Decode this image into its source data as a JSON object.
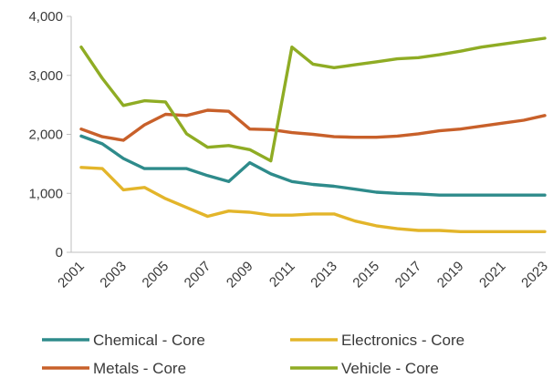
{
  "chart_data": {
    "type": "line",
    "title": "",
    "xlabel": "",
    "ylabel": "",
    "ylim": [
      0,
      4000
    ],
    "yticks": [
      0,
      1000,
      2000,
      3000,
      4000
    ],
    "ytick_labels": [
      "0",
      "1,000",
      "2,000",
      "3,000",
      "4,000"
    ],
    "x": [
      2001,
      2002,
      2003,
      2004,
      2005,
      2006,
      2007,
      2008,
      2009,
      2010,
      2011,
      2012,
      2013,
      2014,
      2015,
      2016,
      2017,
      2018,
      2019,
      2020,
      2021,
      2022,
      2023
    ],
    "xtick_labels": [
      "2001",
      "2003",
      "2005",
      "2007",
      "2009",
      "2011",
      "2013",
      "2015",
      "2017",
      "2019",
      "2021",
      "2023"
    ],
    "grid": false,
    "legend_position": "bottom",
    "series": [
      {
        "name": "Chemical - Core",
        "color": "#2e8b8b",
        "values": [
          1970,
          1840,
          1590,
          1420,
          1420,
          1420,
          1300,
          1200,
          1520,
          1330,
          1200,
          1150,
          1120,
          1070,
          1020,
          1000,
          990,
          970,
          970,
          970,
          970,
          970,
          970
        ]
      },
      {
        "name": "Electronics - Core",
        "color": "#e3b52a",
        "values": [
          1440,
          1420,
          1060,
          1100,
          910,
          760,
          610,
          700,
          680,
          630,
          630,
          650,
          650,
          530,
          450,
          400,
          370,
          370,
          350,
          350,
          350,
          350,
          350
        ]
      },
      {
        "name": "Metals - Core",
        "color": "#c8602a",
        "values": [
          2090,
          1960,
          1900,
          2160,
          2340,
          2320,
          2410,
          2390,
          2090,
          2080,
          2030,
          2000,
          1960,
          1950,
          1950,
          1970,
          2010,
          2060,
          2090,
          2140,
          2190,
          2240,
          2320
        ]
      },
      {
        "name": "Vehicle - Core",
        "color": "#8fac24",
        "values": [
          3480,
          2950,
          2490,
          2570,
          2550,
          2010,
          1780,
          1810,
          1740,
          1550,
          3480,
          3190,
          3130,
          3180,
          3230,
          3280,
          3300,
          3350,
          3410,
          3480,
          3530,
          3580,
          3630
        ]
      }
    ]
  }
}
